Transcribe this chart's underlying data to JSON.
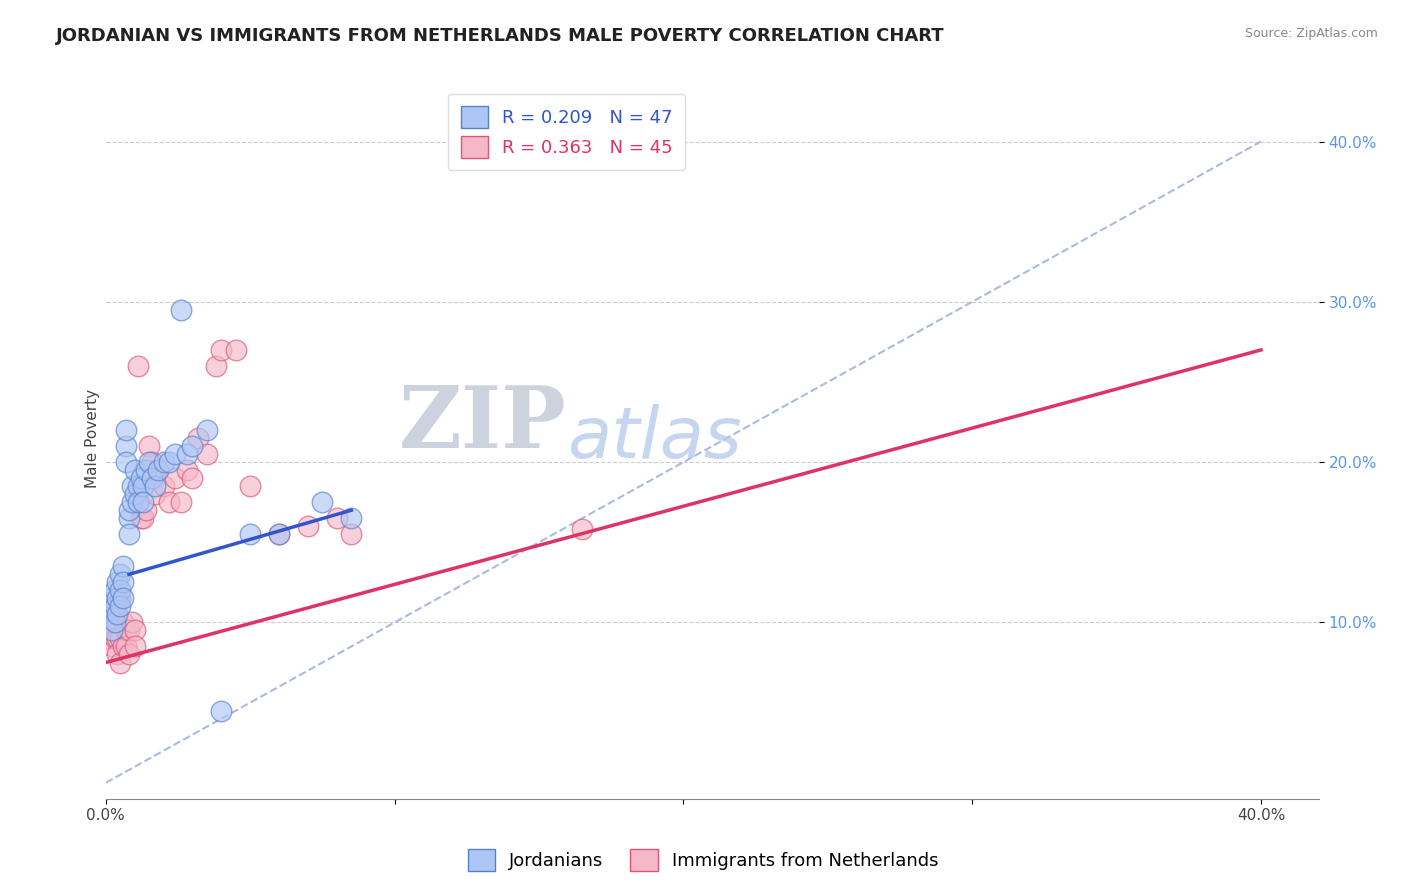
{
  "title": "JORDANIAN VS IMMIGRANTS FROM NETHERLANDS MALE POVERTY CORRELATION CHART",
  "source": "Source: ZipAtlas.com",
  "ylabel": "Male Poverty",
  "xlim": [
    0.0,
    0.42
  ],
  "ylim": [
    -0.01,
    0.44
  ],
  "xticks": [
    0.0,
    0.1,
    0.2,
    0.3,
    0.4
  ],
  "xticklabels": [
    "0.0%",
    "",
    "",
    "",
    ""
  ],
  "yticks": [
    0.1,
    0.2,
    0.3,
    0.4
  ],
  "yticklabels": [
    "10.0%",
    "20.0%",
    "30.0%",
    "40.0%"
  ],
  "legend_entries": [
    {
      "label": "R = 0.209   N = 47"
    },
    {
      "label": "R = 0.363   N = 45"
    }
  ],
  "legend_bottom": [
    {
      "label": "Jordanians"
    },
    {
      "label": "Immigrants from Netherlands"
    }
  ],
  "blue_scatter_x": [
    0.001,
    0.002,
    0.002,
    0.003,
    0.003,
    0.003,
    0.004,
    0.004,
    0.004,
    0.005,
    0.005,
    0.005,
    0.006,
    0.006,
    0.006,
    0.007,
    0.007,
    0.007,
    0.008,
    0.008,
    0.008,
    0.009,
    0.009,
    0.01,
    0.01,
    0.011,
    0.011,
    0.012,
    0.013,
    0.013,
    0.014,
    0.015,
    0.016,
    0.017,
    0.018,
    0.02,
    0.022,
    0.024,
    0.026,
    0.028,
    0.03,
    0.035,
    0.04,
    0.05,
    0.06,
    0.075,
    0.085
  ],
  "blue_scatter_y": [
    0.105,
    0.115,
    0.095,
    0.12,
    0.11,
    0.1,
    0.125,
    0.115,
    0.105,
    0.13,
    0.12,
    0.11,
    0.135,
    0.125,
    0.115,
    0.21,
    0.2,
    0.22,
    0.165,
    0.155,
    0.17,
    0.175,
    0.185,
    0.18,
    0.195,
    0.185,
    0.175,
    0.19,
    0.185,
    0.175,
    0.195,
    0.2,
    0.19,
    0.185,
    0.195,
    0.2,
    0.2,
    0.205,
    0.295,
    0.205,
    0.21,
    0.22,
    0.045,
    0.155,
    0.155,
    0.175,
    0.165
  ],
  "pink_scatter_x": [
    0.001,
    0.002,
    0.002,
    0.003,
    0.003,
    0.004,
    0.004,
    0.004,
    0.005,
    0.005,
    0.005,
    0.006,
    0.006,
    0.007,
    0.007,
    0.008,
    0.008,
    0.009,
    0.01,
    0.01,
    0.011,
    0.012,
    0.013,
    0.014,
    0.015,
    0.016,
    0.017,
    0.018,
    0.02,
    0.022,
    0.024,
    0.026,
    0.028,
    0.03,
    0.032,
    0.035,
    0.038,
    0.04,
    0.045,
    0.05,
    0.06,
    0.07,
    0.08,
    0.085,
    0.165
  ],
  "pink_scatter_y": [
    0.09,
    0.105,
    0.085,
    0.11,
    0.09,
    0.1,
    0.09,
    0.08,
    0.115,
    0.09,
    0.075,
    0.1,
    0.085,
    0.095,
    0.085,
    0.095,
    0.08,
    0.1,
    0.095,
    0.085,
    0.26,
    0.165,
    0.165,
    0.17,
    0.21,
    0.2,
    0.18,
    0.195,
    0.185,
    0.175,
    0.19,
    0.175,
    0.195,
    0.19,
    0.215,
    0.205,
    0.26,
    0.27,
    0.27,
    0.185,
    0.155,
    0.16,
    0.165,
    0.155,
    0.158
  ],
  "blue_line_x": [
    0.008,
    0.085
  ],
  "blue_line_y": [
    0.13,
    0.17
  ],
  "pink_line_x": [
    0.0,
    0.4
  ],
  "pink_line_y": [
    0.075,
    0.27
  ],
  "diag_line_x": [
    0.0,
    0.4
  ],
  "diag_line_y": [
    0.0,
    0.4
  ],
  "blue_scatter_color": "#aec6f5",
  "blue_edge_color": "#5580cc",
  "pink_scatter_color": "#f5b8c8",
  "pink_edge_color": "#dd5577",
  "blue_line_color": "#3355cc",
  "pink_line_color": "#dd3366",
  "diag_line_color": "#aabbdd",
  "watermark_zip_color": "#c0c8d8",
  "watermark_atlas_color": "#b8ccee",
  "background_color": "#ffffff",
  "grid_color": "#cccccc",
  "ytick_color": "#5599ee",
  "title_fontsize": 13,
  "axis_fontsize": 11,
  "tick_fontsize": 11,
  "legend_fontsize": 13
}
